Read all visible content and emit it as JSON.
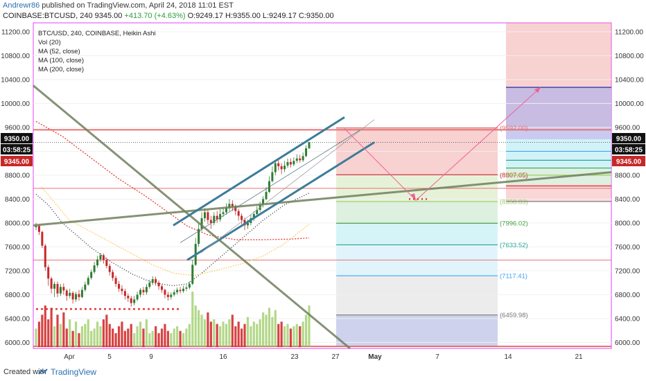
{
  "header": {
    "author": "Andrewr86",
    "published_text": "published on TradingView.com, April 24, 2018 11:01 EST",
    "symbol_line_prefix": "COINBASE:BTCUSD, 240",
    "last_price": "9345.00",
    "change": "+413.70 (+4.63%)",
    "ohlc": "O:9249.17 H:9355.00 L:9249.17 C:9350.00"
  },
  "legend": {
    "title": "BTC/USD, 240, COINBASE, Heikin Ashi",
    "items": [
      "Vol (20)",
      "MA (52, close)",
      "MA (100, close)",
      "MA (200, close)"
    ]
  },
  "footer": {
    "created_with": "Created with",
    "brand": "TradingView"
  },
  "colors": {
    "accent": "#2a6fb0",
    "up_candle": "#2e7d32",
    "down_candle": "#c62828",
    "channel": "#3b7c99",
    "trendline": "#6f7f5c"
  },
  "chart_data": {
    "type": "candlestick",
    "ylim": [
      5900,
      11350
    ],
    "y_ticks": [
      6000,
      6400,
      6800,
      7200,
      7600,
      8000,
      8400,
      8800,
      9200,
      9600,
      10000,
      10400,
      10800,
      11200
    ],
    "y_tick_labels": [
      "6000.00",
      "6400.00",
      "6800.00",
      "7200.00",
      "7600.00",
      "8000.00",
      "8400.00",
      "8800.00",
      "9200.00",
      "9600.00",
      "10000.00",
      "10400.00",
      "10800.00",
      "11200.00"
    ],
    "x_ticks": [
      "Apr",
      "5",
      "9",
      "16",
      "23",
      "27",
      "May",
      "7",
      "14",
      "21"
    ],
    "price_badges": [
      {
        "label": "9350.00",
        "value": 9350,
        "style": "dark"
      },
      {
        "label": "03:58:25",
        "value": 9260,
        "style": "dark"
      },
      {
        "label": "9345.00",
        "value": 9345,
        "style": "red"
      }
    ],
    "fib_levels": [
      {
        "label": "(9592.00)",
        "value": 9592
      },
      {
        "label": "(8807.05)",
        "value": 8807
      },
      {
        "label": "(8358.83)",
        "value": 8359
      },
      {
        "label": "(7996.02)",
        "value": 7996
      },
      {
        "label": "(7633.52)",
        "value": 7634
      },
      {
        "label": "(7117.41)",
        "value": 7117
      },
      {
        "label": "(6459.98)",
        "value": 6460
      }
    ],
    "target_level": 10270,
    "candles": [
      [
        7930,
        7950,
        8000,
        7880
      ],
      [
        7950,
        7850,
        7980,
        7800
      ],
      [
        7850,
        7620,
        7870,
        7580
      ],
      [
        7620,
        7260,
        7650,
        7200
      ],
      [
        7260,
        7070,
        7300,
        6950
      ],
      [
        7070,
        6900,
        7100,
        6820
      ],
      [
        6900,
        6980,
        7020,
        6760
      ],
      [
        6980,
        6820,
        7020,
        6760
      ],
      [
        6820,
        6930,
        6980,
        6780
      ],
      [
        6930,
        6870,
        6990,
        6800
      ],
      [
        6870,
        6780,
        6900,
        6700
      ],
      [
        6780,
        6830,
        6900,
        6740
      ],
      [
        6830,
        6720,
        6860,
        6650
      ],
      [
        6720,
        6810,
        6850,
        6680
      ],
      [
        6810,
        6760,
        6880,
        6700
      ],
      [
        6760,
        6880,
        6930,
        6740
      ],
      [
        6880,
        6970,
        7020,
        6850
      ],
      [
        6970,
        7080,
        7120,
        6950
      ],
      [
        7080,
        7180,
        7220,
        7050
      ],
      [
        7180,
        7290,
        7350,
        7150
      ],
      [
        7290,
        7390,
        7450,
        7250
      ],
      [
        7390,
        7460,
        7500,
        7350
      ],
      [
        7460,
        7380,
        7490,
        7320
      ],
      [
        7380,
        7280,
        7420,
        7240
      ],
      [
        7280,
        7180,
        7320,
        7120
      ],
      [
        7180,
        7080,
        7220,
        7030
      ],
      [
        7080,
        6980,
        7120,
        6930
      ],
      [
        6980,
        6900,
        7030,
        6850
      ],
      [
        6900,
        6860,
        6960,
        6800
      ],
      [
        6860,
        6780,
        6900,
        6720
      ],
      [
        6780,
        6740,
        6820,
        6680
      ],
      [
        6740,
        6660,
        6780,
        6600
      ],
      [
        6660,
        6720,
        6780,
        6620
      ],
      [
        6720,
        6800,
        6850,
        6690
      ],
      [
        6800,
        6880,
        6910,
        6760
      ],
      [
        6880,
        6840,
        6930,
        6790
      ],
      [
        6840,
        6930,
        6980,
        6800
      ],
      [
        6930,
        7000,
        7050,
        6900
      ],
      [
        7000,
        7060,
        7110,
        6960
      ],
      [
        7060,
        7000,
        7100,
        6950
      ],
      [
        7000,
        6940,
        7040,
        6880
      ],
      [
        6940,
        6880,
        6970,
        6830
      ],
      [
        6880,
        6800,
        6900,
        6740
      ],
      [
        6800,
        6760,
        6850,
        6700
      ],
      [
        6760,
        6800,
        6840,
        6720
      ],
      [
        6800,
        6840,
        6880,
        6770
      ],
      [
        6840,
        6880,
        6920,
        6800
      ],
      [
        6880,
        6860,
        6930,
        6820
      ],
      [
        6860,
        6900,
        6950,
        6830
      ],
      [
        6900,
        6920,
        6960,
        6860
      ],
      [
        6920,
        6980,
        7020,
        6890
      ],
      [
        6980,
        7300,
        7380,
        6960
      ],
      [
        7300,
        7650,
        7750,
        7280
      ],
      [
        7650,
        7900,
        8000,
        7600
      ],
      [
        7900,
        8080,
        8180,
        7860
      ],
      [
        8080,
        8180,
        8250,
        8020
      ],
      [
        8180,
        8050,
        8220,
        7980
      ],
      [
        8050,
        8000,
        8120,
        7900
      ],
      [
        8000,
        8120,
        8180,
        7960
      ],
      [
        8120,
        8060,
        8200,
        8000
      ],
      [
        8060,
        8150,
        8230,
        8020
      ],
      [
        8150,
        8180,
        8260,
        8100
      ],
      [
        8180,
        8250,
        8330,
        8140
      ],
      [
        8250,
        8320,
        8400,
        8200
      ],
      [
        8320,
        8280,
        8380,
        8200
      ],
      [
        8280,
        8200,
        8310,
        8130
      ],
      [
        8200,
        8120,
        8240,
        8040
      ],
      [
        8120,
        8050,
        8160,
        7980
      ],
      [
        8050,
        7960,
        8090,
        7880
      ],
      [
        7960,
        8000,
        8060,
        7900
      ],
      [
        8000,
        8080,
        8140,
        7960
      ],
      [
        8080,
        8150,
        8200,
        8030
      ],
      [
        8150,
        8220,
        8280,
        8100
      ],
      [
        8220,
        8300,
        8360,
        8180
      ],
      [
        8300,
        8400,
        8450,
        8260
      ],
      [
        8400,
        8520,
        8600,
        8380
      ],
      [
        8520,
        8700,
        8780,
        8500
      ],
      [
        8700,
        8850,
        8950,
        8680
      ],
      [
        8850,
        9000,
        9050,
        8800
      ],
      [
        9000,
        8950,
        9060,
        8880
      ],
      [
        8950,
        8900,
        9000,
        8820
      ],
      [
        8900,
        8960,
        9040,
        8850
      ],
      [
        8960,
        9020,
        9080,
        8920
      ],
      [
        9020,
        8980,
        9080,
        8930
      ],
      [
        8980,
        9040,
        9100,
        8950
      ],
      [
        9040,
        9080,
        9150,
        9000
      ],
      [
        9080,
        9050,
        9140,
        9010
      ],
      [
        9050,
        9120,
        9180,
        9020
      ],
      [
        9120,
        9250,
        9300,
        9100
      ],
      [
        9250,
        9350,
        9355,
        9240
      ]
    ],
    "volumes": [
      40,
      55,
      70,
      90,
      60,
      85,
      45,
      70,
      50,
      75,
      40,
      60,
      35,
      55,
      30,
      45,
      50,
      60,
      35,
      40,
      55,
      45,
      60,
      70,
      50,
      40,
      30,
      45,
      55,
      35,
      40,
      50,
      30,
      45,
      55,
      40,
      60,
      30,
      35,
      45,
      30,
      40,
      50,
      35,
      30,
      40,
      45,
      35,
      30,
      40,
      50,
      120,
      90,
      80,
      70,
      60,
      75,
      55,
      60,
      50,
      45,
      55,
      50,
      60,
      70,
      45,
      55,
      40,
      50,
      65,
      45,
      55,
      50,
      60,
      75,
      70,
      85,
      65,
      80,
      50,
      55,
      45,
      50,
      40,
      45,
      50,
      45,
      55,
      70,
      90
    ]
  }
}
